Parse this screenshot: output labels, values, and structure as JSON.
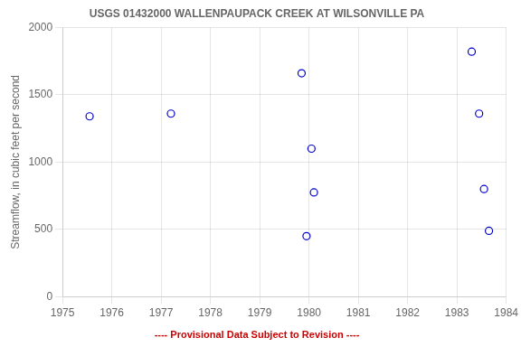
{
  "chart_data": {
    "type": "scatter",
    "title": "USGS 01432000 WALLENPAUPACK CREEK AT WILSONVILLE PA",
    "ylabel": "Streamflow, in cubic feet per second",
    "annotations": [
      {
        "text": "---- Provisional Data Subject to Revision ----",
        "color": "#cc0000"
      }
    ],
    "x": [
      1975.55,
      1977.2,
      1979.85,
      1980.05,
      1980.1,
      1979.95,
      1983.3,
      1983.45,
      1983.55,
      1983.65
    ],
    "values": [
      1340,
      1360,
      1660,
      1100,
      775,
      450,
      1820,
      1360,
      800,
      490
    ],
    "color": "#0000cc",
    "marker": "circle",
    "xlim": [
      1975,
      1984
    ],
    "ylim": [
      0,
      2000
    ],
    "xticks": [
      1975,
      1976,
      1977,
      1978,
      1979,
      1980,
      1981,
      1982,
      1983,
      1984
    ],
    "yticks": [
      0,
      500,
      1000,
      1500,
      2000
    ],
    "grid": true
  }
}
